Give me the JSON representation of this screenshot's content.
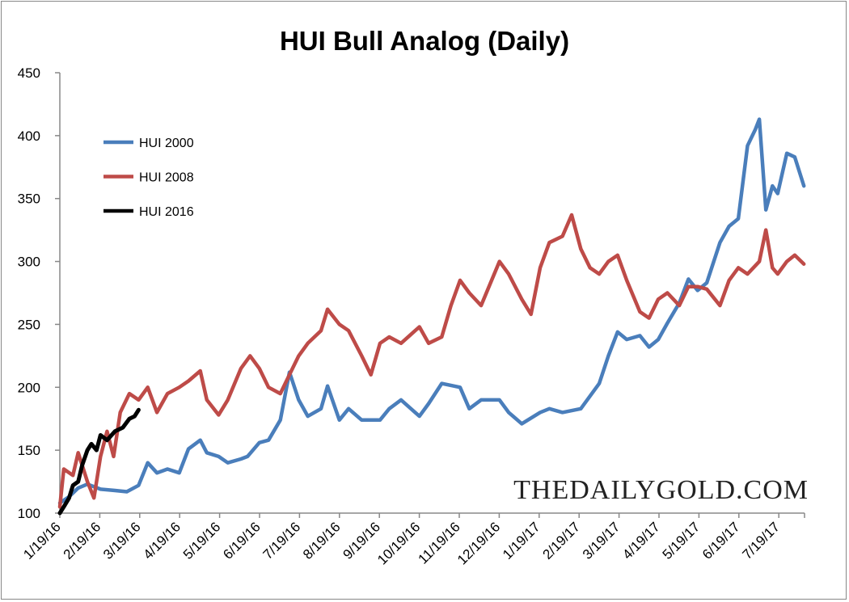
{
  "chart_data": {
    "type": "line",
    "title": "HUI Bull Analog (Daily)",
    "xlabel": "",
    "ylabel": "",
    "ylim": [
      100,
      450
    ],
    "yticks": [
      "100",
      "150",
      "200",
      "250",
      "300",
      "350",
      "400",
      "450"
    ],
    "xticks": [
      "1/19/16",
      "2/19/16",
      "3/19/16",
      "4/19/16",
      "5/19/16",
      "6/19/16",
      "7/19/16",
      "8/19/16",
      "9/19/16",
      "10/19/16",
      "11/19/16",
      "12/19/16",
      "1/19/17",
      "2/19/17",
      "3/19/17",
      "4/19/17",
      "5/19/17",
      "6/19/17",
      "7/19/17"
    ],
    "grid": false,
    "legend_position": "top-left",
    "watermark": "THEDAILYGOLD.COM",
    "series": [
      {
        "name": "HUI 2000",
        "color": "#4a7ebb",
        "points": [
          [
            "2016-01-19",
            108
          ],
          [
            "2016-01-26",
            113
          ],
          [
            "2016-02-02",
            120
          ],
          [
            "2016-02-09",
            123
          ],
          [
            "2016-02-19",
            119
          ],
          [
            "2016-03-01",
            118
          ],
          [
            "2016-03-10",
            117
          ],
          [
            "2016-03-19",
            122
          ],
          [
            "2016-03-26",
            140
          ],
          [
            "2016-04-02",
            132
          ],
          [
            "2016-04-10",
            135
          ],
          [
            "2016-04-19",
            132
          ],
          [
            "2016-04-26",
            151
          ],
          [
            "2016-05-05",
            158
          ],
          [
            "2016-05-10",
            148
          ],
          [
            "2016-05-19",
            145
          ],
          [
            "2016-05-26",
            140
          ],
          [
            "2016-06-05",
            143
          ],
          [
            "2016-06-10",
            145
          ],
          [
            "2016-06-19",
            156
          ],
          [
            "2016-06-26",
            158
          ],
          [
            "2016-07-05",
            174
          ],
          [
            "2016-07-12",
            212
          ],
          [
            "2016-07-19",
            190
          ],
          [
            "2016-07-26",
            177
          ],
          [
            "2016-08-05",
            183
          ],
          [
            "2016-08-10",
            201
          ],
          [
            "2016-08-19",
            174
          ],
          [
            "2016-08-26",
            183
          ],
          [
            "2016-09-05",
            174
          ],
          [
            "2016-09-19",
            174
          ],
          [
            "2016-09-26",
            183
          ],
          [
            "2016-10-05",
            190
          ],
          [
            "2016-10-19",
            177
          ],
          [
            "2016-10-26",
            187
          ],
          [
            "2016-11-05",
            203
          ],
          [
            "2016-11-19",
            200
          ],
          [
            "2016-11-26",
            183
          ],
          [
            "2016-12-05",
            190
          ],
          [
            "2016-12-19",
            190
          ],
          [
            "2016-12-26",
            180
          ],
          [
            "2017-01-05",
            171
          ],
          [
            "2017-01-19",
            180
          ],
          [
            "2017-01-26",
            183
          ],
          [
            "2017-02-05",
            180
          ],
          [
            "2017-02-19",
            183
          ],
          [
            "2017-02-26",
            193
          ],
          [
            "2017-03-05",
            203
          ],
          [
            "2017-03-12",
            225
          ],
          [
            "2017-03-19",
            244
          ],
          [
            "2017-03-26",
            238
          ],
          [
            "2017-04-05",
            241
          ],
          [
            "2017-04-12",
            232
          ],
          [
            "2017-04-19",
            238
          ],
          [
            "2017-04-26",
            251
          ],
          [
            "2017-05-05",
            267
          ],
          [
            "2017-05-12",
            286
          ],
          [
            "2017-05-19",
            277
          ],
          [
            "2017-05-26",
            283
          ],
          [
            "2017-06-05",
            315
          ],
          [
            "2017-06-12",
            328
          ],
          [
            "2017-06-19",
            334
          ],
          [
            "2017-06-26",
            392
          ],
          [
            "2017-07-02",
            405
          ],
          [
            "2017-07-05",
            413
          ],
          [
            "2017-07-10",
            341
          ],
          [
            "2017-07-15",
            360
          ],
          [
            "2017-07-19",
            354
          ],
          [
            "2017-07-26",
            386
          ],
          [
            "2017-08-01",
            383
          ],
          [
            "2017-08-08",
            360
          ]
        ]
      },
      {
        "name": "HUI 2008",
        "color": "#be4b48",
        "points": [
          [
            "2016-01-19",
            105
          ],
          [
            "2016-01-22",
            135
          ],
          [
            "2016-01-29",
            130
          ],
          [
            "2016-02-02",
            148
          ],
          [
            "2016-02-09",
            125
          ],
          [
            "2016-02-14",
            112
          ],
          [
            "2016-02-19",
            145
          ],
          [
            "2016-02-24",
            165
          ],
          [
            "2016-02-29",
            145
          ],
          [
            "2016-03-05",
            180
          ],
          [
            "2016-03-12",
            195
          ],
          [
            "2016-03-19",
            190
          ],
          [
            "2016-03-26",
            200
          ],
          [
            "2016-04-02",
            180
          ],
          [
            "2016-04-10",
            195
          ],
          [
            "2016-04-19",
            200
          ],
          [
            "2016-04-26",
            205
          ],
          [
            "2016-05-05",
            213
          ],
          [
            "2016-05-10",
            190
          ],
          [
            "2016-05-19",
            178
          ],
          [
            "2016-05-26",
            190
          ],
          [
            "2016-06-05",
            215
          ],
          [
            "2016-06-12",
            225
          ],
          [
            "2016-06-19",
            215
          ],
          [
            "2016-06-26",
            200
          ],
          [
            "2016-07-05",
            195
          ],
          [
            "2016-07-12",
            210
          ],
          [
            "2016-07-19",
            225
          ],
          [
            "2016-07-26",
            235
          ],
          [
            "2016-08-05",
            245
          ],
          [
            "2016-08-10",
            262
          ],
          [
            "2016-08-19",
            250
          ],
          [
            "2016-08-26",
            245
          ],
          [
            "2016-09-05",
            225
          ],
          [
            "2016-09-12",
            210
          ],
          [
            "2016-09-19",
            235
          ],
          [
            "2016-09-26",
            240
          ],
          [
            "2016-10-05",
            235
          ],
          [
            "2016-10-19",
            248
          ],
          [
            "2016-10-26",
            235
          ],
          [
            "2016-11-05",
            240
          ],
          [
            "2016-11-12",
            265
          ],
          [
            "2016-11-19",
            285
          ],
          [
            "2016-11-26",
            275
          ],
          [
            "2016-12-05",
            265
          ],
          [
            "2016-12-19",
            300
          ],
          [
            "2016-12-26",
            290
          ],
          [
            "2017-01-05",
            270
          ],
          [
            "2017-01-12",
            258
          ],
          [
            "2017-01-19",
            295
          ],
          [
            "2017-01-26",
            315
          ],
          [
            "2017-02-05",
            320
          ],
          [
            "2017-02-12",
            337
          ],
          [
            "2017-02-19",
            310
          ],
          [
            "2017-02-26",
            295
          ],
          [
            "2017-03-05",
            290
          ],
          [
            "2017-03-12",
            300
          ],
          [
            "2017-03-19",
            305
          ],
          [
            "2017-03-26",
            285
          ],
          [
            "2017-04-05",
            260
          ],
          [
            "2017-04-12",
            255
          ],
          [
            "2017-04-19",
            270
          ],
          [
            "2017-04-26",
            275
          ],
          [
            "2017-05-05",
            265
          ],
          [
            "2017-05-12",
            280
          ],
          [
            "2017-05-19",
            280
          ],
          [
            "2017-05-26",
            278
          ],
          [
            "2017-06-05",
            265
          ],
          [
            "2017-06-12",
            285
          ],
          [
            "2017-06-19",
            295
          ],
          [
            "2017-06-26",
            290
          ],
          [
            "2017-07-05",
            300
          ],
          [
            "2017-07-10",
            325
          ],
          [
            "2017-07-15",
            295
          ],
          [
            "2017-07-19",
            290
          ],
          [
            "2017-07-26",
            300
          ],
          [
            "2017-08-01",
            305
          ],
          [
            "2017-08-08",
            298
          ]
        ]
      },
      {
        "name": "HUI 2016",
        "color": "#000000",
        "points": [
          [
            "2016-01-19",
            100
          ],
          [
            "2016-01-22",
            105
          ],
          [
            "2016-01-26",
            112
          ],
          [
            "2016-01-29",
            122
          ],
          [
            "2016-02-02",
            125
          ],
          [
            "2016-02-05",
            138
          ],
          [
            "2016-02-09",
            150
          ],
          [
            "2016-02-12",
            155
          ],
          [
            "2016-02-16",
            150
          ],
          [
            "2016-02-19",
            162
          ],
          [
            "2016-02-24",
            158
          ],
          [
            "2016-03-01",
            165
          ],
          [
            "2016-03-07",
            168
          ],
          [
            "2016-03-12",
            175
          ],
          [
            "2016-03-16",
            177
          ],
          [
            "2016-03-19",
            182
          ]
        ]
      }
    ]
  }
}
